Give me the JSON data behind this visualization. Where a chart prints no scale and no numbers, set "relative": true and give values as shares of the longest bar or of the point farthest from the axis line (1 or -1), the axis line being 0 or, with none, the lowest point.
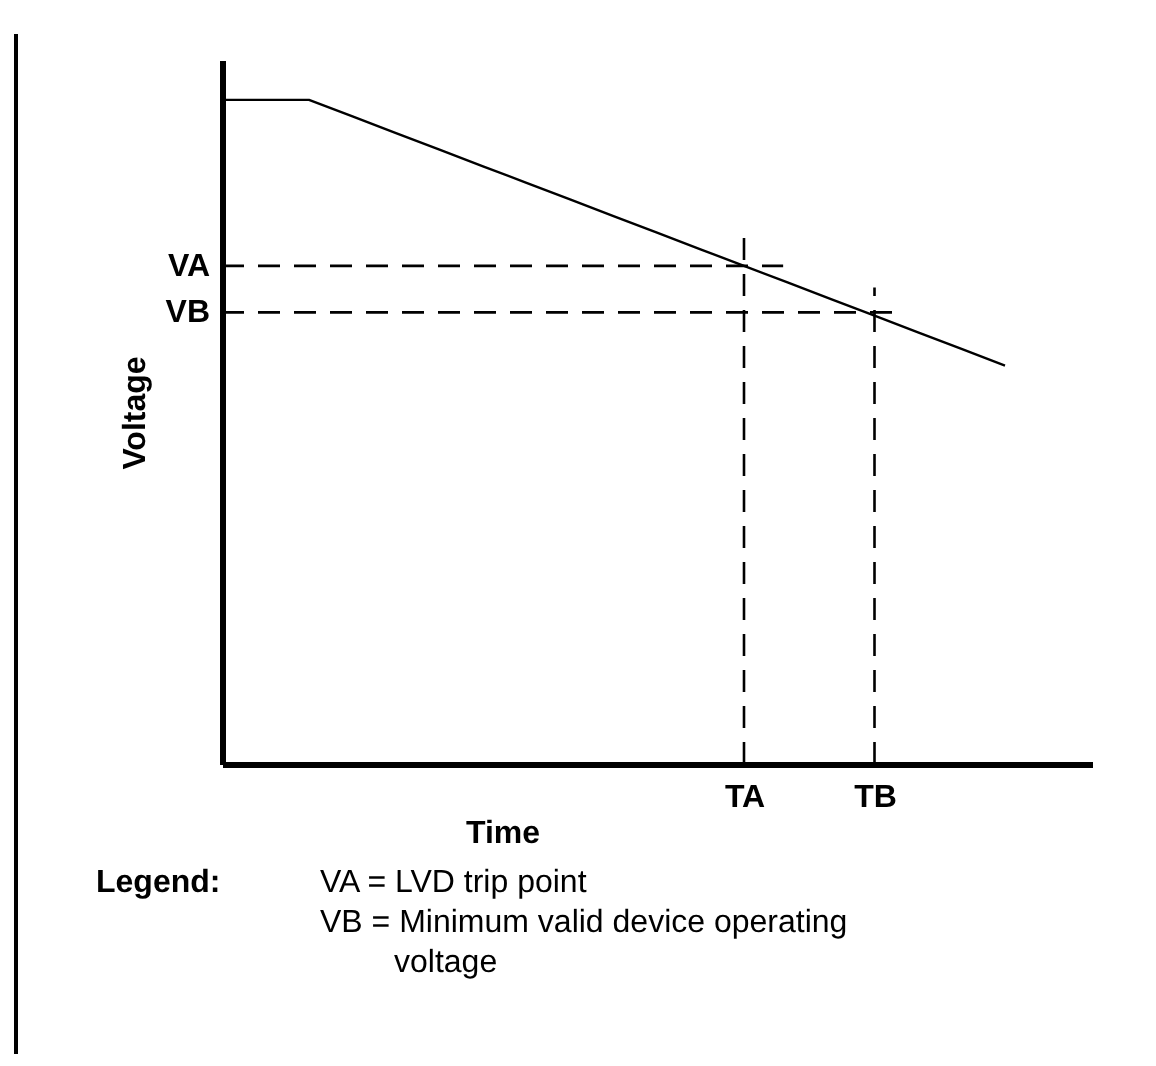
{
  "chart_data": {
    "type": "line",
    "relative": true,
    "xlabel": "Time",
    "ylabel": "Voltage",
    "tick_labels": "x",
    "categories": [
      null,
      null,
      null,
      null,
      null,
      null,
      null,
      null,
      null,
      null,
      null,
      null,
      "TA",
      null,
      null,
      "TB",
      null,
      null,
      null,
      null,
      null
    ],
    "series": [
      {
        "color": "#000000",
        "values": [
          1,
          1,
          1,
          0.975,
          0.95,
          0.925,
          0.9,
          0.875,
          0.85,
          0.825,
          0.8,
          0.775,
          0.75,
          0.725,
          0.7,
          0.675,
          0.65,
          0.625,
          0.6,
          null,
          null
        ]
      }
    ],
    "ref_lines": [
      {
        "axis": "y",
        "value": 0.75,
        "label": "VA",
        "color": "#000000",
        "line_style": "dashed"
      },
      {
        "axis": "y",
        "value": 0.68,
        "label": "VB",
        "color": "#000000",
        "line_style": "dashed"
      },
      {
        "axis": "x",
        "value": "TA",
        "color": "#000000",
        "line_style": "dashed"
      },
      {
        "axis": "x",
        "value": "TB",
        "color": "#000000",
        "line_style": "dashed"
      }
    ],
    "annotations": [
      "Legend:",
      "VA = LVD trip point",
      "VB = Minimum valid device operating voltage"
    ]
  }
}
